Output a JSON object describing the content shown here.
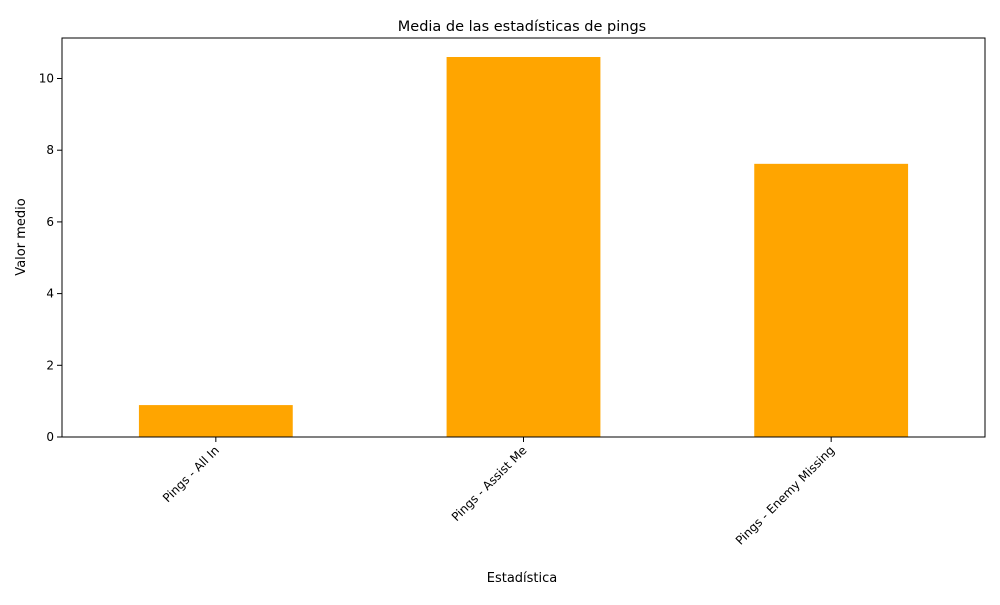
{
  "chart_data": {
    "type": "bar",
    "title": "Media de las estadísticas de pings",
    "xlabel": "Estadística",
    "ylabel": "Valor medio",
    "categories": [
      "Pings - All In",
      "Pings - Assist Me",
      "Pings - Enemy Missing"
    ],
    "values": [
      0.89,
      10.6,
      7.62
    ],
    "ylim": [
      0,
      11.13
    ],
    "yticks": [
      0,
      2,
      4,
      6,
      8,
      10
    ],
    "ytick_labels": [
      "0",
      "2",
      "4",
      "6",
      "8",
      "10"
    ],
    "bar_color": "#ffa500",
    "grid": false,
    "legend": "none"
  }
}
